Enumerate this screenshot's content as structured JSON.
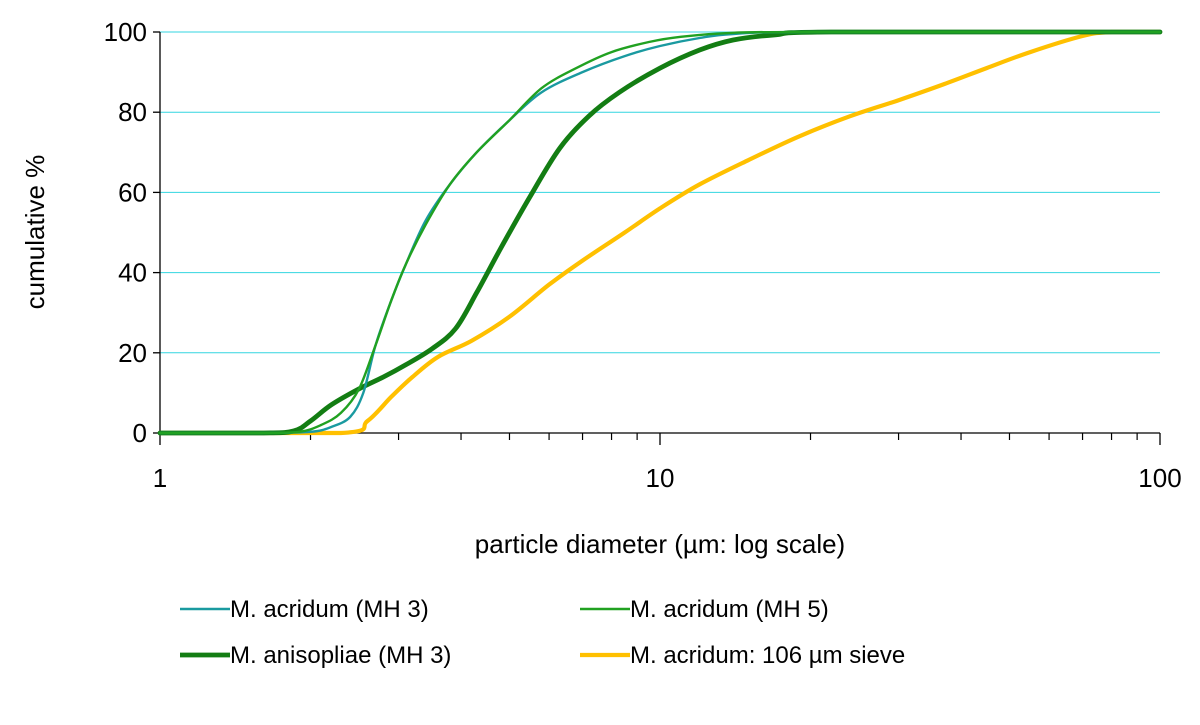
{
  "chart_data": {
    "type": "line",
    "title": "",
    "xlabel": "particle diameter (µm: log scale)",
    "ylabel": "cumulative %",
    "xscale": "log",
    "xlim": [
      1,
      100
    ],
    "ylim": [
      0,
      100
    ],
    "x_ticks": [
      1,
      10,
      100
    ],
    "x_tick_labels": [
      "1",
      "10",
      "100"
    ],
    "y_ticks": [
      0,
      20,
      40,
      60,
      80,
      100
    ],
    "y_tick_labels": [
      "0",
      "20",
      "40",
      "60",
      "80",
      "100"
    ],
    "grid": "horizontal",
    "legend_position": "bottom",
    "gridline_color": "#33d6e0",
    "series": [
      {
        "name": "M. acridum (MH 3)",
        "color": "#1a9aa0",
        "points": [
          [
            1,
            0
          ],
          [
            1.6,
            0
          ],
          [
            2.0,
            0.3
          ],
          [
            2.2,
            1.5
          ],
          [
            2.4,
            4
          ],
          [
            2.55,
            10
          ],
          [
            2.7,
            22
          ],
          [
            2.9,
            33
          ],
          [
            3.1,
            42
          ],
          [
            3.4,
            53
          ],
          [
            3.8,
            62
          ],
          [
            4.3,
            70
          ],
          [
            5.0,
            78
          ],
          [
            5.8,
            85
          ],
          [
            7.0,
            90
          ],
          [
            8.5,
            94
          ],
          [
            10,
            96.5
          ],
          [
            12,
            98.5
          ],
          [
            14,
            99.5
          ],
          [
            20,
            100
          ],
          [
            100,
            100
          ]
        ]
      },
      {
        "name": "M. acridum (MH 5)",
        "color": "#21a121",
        "points": [
          [
            1,
            0
          ],
          [
            1.6,
            0
          ],
          [
            1.9,
            0.3
          ],
          [
            2.1,
            2
          ],
          [
            2.3,
            5
          ],
          [
            2.5,
            11
          ],
          [
            2.7,
            22
          ],
          [
            2.9,
            33
          ],
          [
            3.1,
            42
          ],
          [
            3.4,
            52
          ],
          [
            3.8,
            62
          ],
          [
            4.3,
            70
          ],
          [
            5.0,
            78
          ],
          [
            5.8,
            86
          ],
          [
            6.8,
            91
          ],
          [
            8.0,
            95
          ],
          [
            9.5,
            97.5
          ],
          [
            11,
            98.8
          ],
          [
            14,
            99.8
          ],
          [
            20,
            100
          ],
          [
            100,
            100
          ]
        ]
      },
      {
        "name": "M. anisopliae (MH 3)",
        "color": "#137d13",
        "points": [
          [
            1,
            0
          ],
          [
            1.6,
            0
          ],
          [
            1.85,
            0.5
          ],
          [
            2.0,
            3
          ],
          [
            2.2,
            7
          ],
          [
            2.5,
            11
          ],
          [
            2.8,
            14
          ],
          [
            3.1,
            17
          ],
          [
            3.5,
            21
          ],
          [
            3.9,
            26
          ],
          [
            4.3,
            35
          ],
          [
            4.8,
            46
          ],
          [
            5.5,
            59
          ],
          [
            6.3,
            71
          ],
          [
            7.2,
            79
          ],
          [
            8.3,
            85
          ],
          [
            10,
            91
          ],
          [
            12,
            95.5
          ],
          [
            14,
            98
          ],
          [
            17,
            99.3
          ],
          [
            22,
            100
          ],
          [
            100,
            100
          ]
        ]
      },
      {
        "name": "M. acridum: 106 µm sieve",
        "color": "#ffc000",
        "points": [
          [
            1,
            0
          ],
          [
            2.3,
            0
          ],
          [
            2.6,
            3
          ],
          [
            2.9,
            9
          ],
          [
            3.2,
            14
          ],
          [
            3.6,
            19
          ],
          [
            4.2,
            23
          ],
          [
            5.0,
            29
          ],
          [
            6.0,
            37
          ],
          [
            7.0,
            43
          ],
          [
            8.5,
            50
          ],
          [
            10,
            56
          ],
          [
            12,
            62
          ],
          [
            15,
            68
          ],
          [
            19,
            74
          ],
          [
            24,
            79
          ],
          [
            30,
            83
          ],
          [
            37,
            87
          ],
          [
            45,
            91
          ],
          [
            55,
            95
          ],
          [
            70,
            99
          ],
          [
            80,
            100
          ],
          [
            100,
            100
          ]
        ]
      }
    ]
  }
}
